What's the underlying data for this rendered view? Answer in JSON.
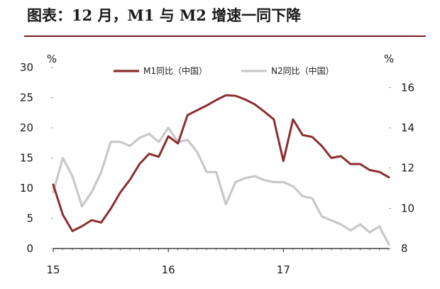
{
  "page_title": "图表：12 月，M1 与 M2 增速一同下降",
  "chart_data": {
    "type": "line",
    "x_ticks": [
      "15",
      "16",
      "17"
    ],
    "y_left": {
      "label": "%",
      "ticks": [
        0,
        5,
        10,
        15,
        20,
        25,
        30
      ],
      "range": [
        0,
        30
      ]
    },
    "y_right": {
      "label": "%",
      "ticks": [
        8,
        10,
        12,
        14,
        16
      ],
      "range": [
        8,
        17
      ]
    },
    "grid": false,
    "legend_placement": "top",
    "series": [
      {
        "name": "M1同比（中国）",
        "axis": "left",
        "color": "#8B2E2E",
        "x": [
          "2015-01",
          "2015-02",
          "2015-03",
          "2015-04",
          "2015-05",
          "2015-06",
          "2015-07",
          "2015-08",
          "2015-09",
          "2015-10",
          "2015-11",
          "2015-12",
          "2016-01",
          "2016-02",
          "2016-03",
          "2016-04",
          "2016-05",
          "2016-06",
          "2016-07",
          "2016-08",
          "2016-09",
          "2016-10",
          "2016-11",
          "2016-12",
          "2017-01",
          "2017-02",
          "2017-03",
          "2017-04",
          "2017-05",
          "2017-06",
          "2017-07",
          "2017-08",
          "2017-09",
          "2017-10",
          "2017-11",
          "2017-12"
        ],
        "values": [
          10.6,
          5.6,
          2.9,
          3.7,
          4.7,
          4.3,
          6.6,
          9.3,
          11.4,
          14.0,
          15.7,
          15.2,
          18.6,
          17.4,
          22.1,
          22.9,
          23.7,
          24.6,
          25.4,
          25.3,
          24.7,
          23.9,
          22.7,
          21.4,
          14.5,
          21.4,
          18.8,
          18.5,
          17.0,
          15.0,
          15.3,
          14.0,
          14.0,
          13.0,
          12.7,
          11.8
        ]
      },
      {
        "name": "N2同比（中国）",
        "axis": "right",
        "color": "#C8C8C8",
        "x": [
          "2015-01",
          "2015-02",
          "2015-03",
          "2015-04",
          "2015-05",
          "2015-06",
          "2015-07",
          "2015-08",
          "2015-09",
          "2015-10",
          "2015-11",
          "2015-12",
          "2016-01",
          "2016-02",
          "2016-03",
          "2016-04",
          "2016-05",
          "2016-06",
          "2016-07",
          "2016-08",
          "2016-09",
          "2016-10",
          "2016-11",
          "2016-12",
          "2017-01",
          "2017-02",
          "2017-03",
          "2017-04",
          "2017-05",
          "2017-06",
          "2017-07",
          "2017-08",
          "2017-09",
          "2017-10",
          "2017-11",
          "2017-12"
        ],
        "values": [
          10.8,
          12.5,
          11.6,
          10.1,
          10.8,
          11.8,
          13.3,
          13.3,
          13.1,
          13.5,
          13.7,
          13.3,
          14.0,
          13.3,
          13.4,
          12.8,
          11.8,
          11.8,
          10.2,
          11.3,
          11.5,
          11.6,
          11.4,
          11.3,
          11.3,
          11.1,
          10.6,
          10.5,
          9.6,
          9.4,
          9.2,
          8.9,
          9.2,
          8.8,
          9.1,
          8.2
        ]
      }
    ]
  }
}
